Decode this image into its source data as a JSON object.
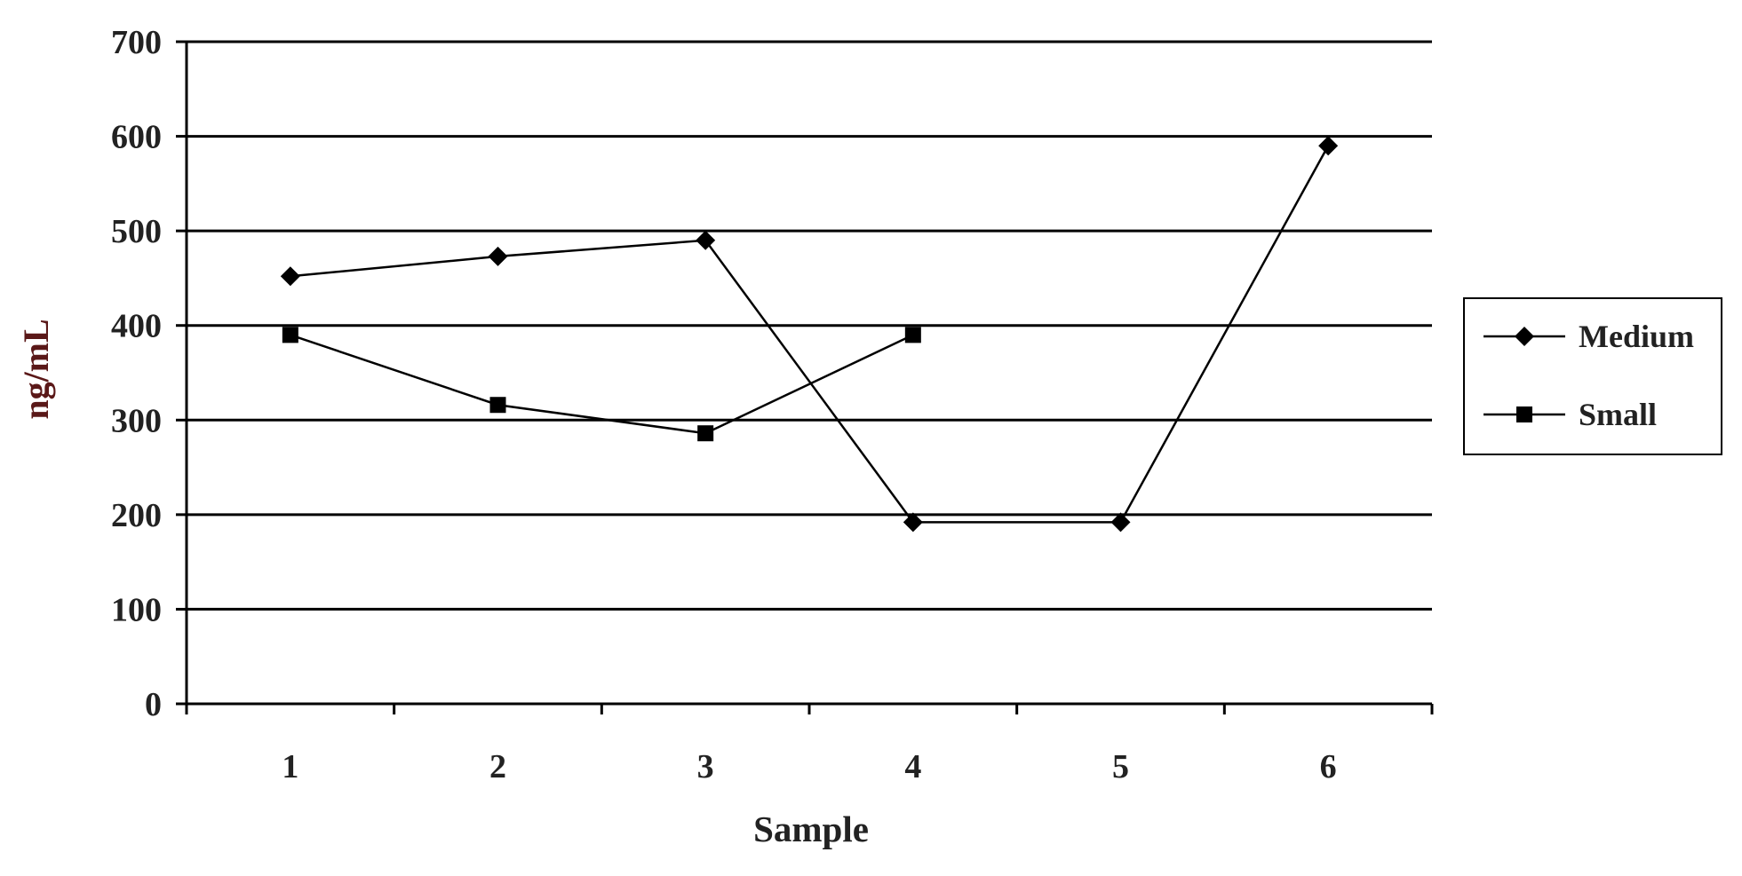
{
  "chart_data": {
    "type": "line",
    "title": "",
    "xlabel": "Sample",
    "ylabel": "ng/mL",
    "categories": [
      "1",
      "2",
      "3",
      "4",
      "5",
      "6"
    ],
    "ylim": [
      0,
      700
    ],
    "yticks": [
      0,
      100,
      200,
      300,
      400,
      500,
      600,
      700
    ],
    "grid": true,
    "legend_position": "right",
    "series": [
      {
        "name": "Medium",
        "marker": "diamond",
        "values": [
          452,
          473,
          490,
          192,
          192,
          590
        ]
      },
      {
        "name": "Small",
        "marker": "square",
        "values": [
          390,
          316,
          286,
          390,
          null,
          null
        ]
      }
    ],
    "colors": {
      "line": "#000000",
      "ylabel": "#5a1818",
      "text": "#222222"
    }
  }
}
